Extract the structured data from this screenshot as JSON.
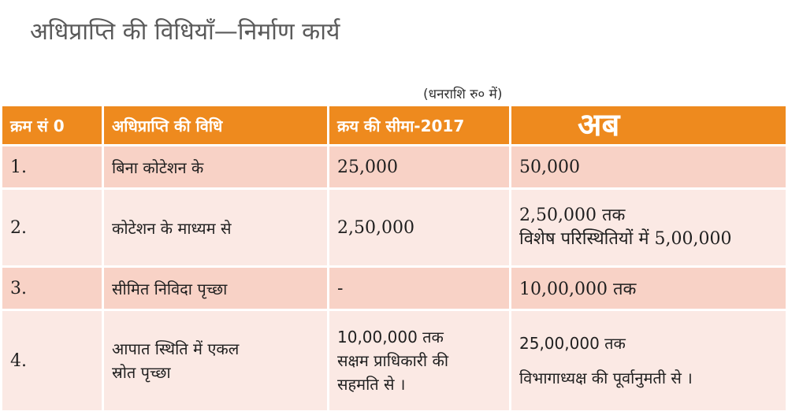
{
  "page": {
    "title": "अधिप्राप्ति की विधियाँ—निर्माण कार्य",
    "note": "(धनराशि रु० में)"
  },
  "table": {
    "headers": [
      "क्रम सं 0",
      "अधिप्राप्ति की विधि",
      "क्रय की सीमा-2017",
      "अब"
    ],
    "header_color": "#ee8a1e",
    "row_colors": [
      "#f8d2c6",
      "#fbe9e4"
    ],
    "rows": [
      {
        "sno": "1.",
        "method": "बिना कोटेशन के",
        "limit2017": "25,000",
        "now": "50,000"
      },
      {
        "sno": "2.",
        "method": "कोटेशन के माध्यम से",
        "limit2017": "2,50,000",
        "now_lines": [
          "2,50,000 तक",
          "विशेष परिस्थितियों में 5,00,000"
        ]
      },
      {
        "sno": "3.",
        "method": "सीमित निविदा पृच्छा",
        "limit2017": "-",
        "now": "10,00,000 तक"
      },
      {
        "sno": "4.",
        "method_lines": [
          "आपात स्थिति में एकल",
          "स्रोत पृच्छा"
        ],
        "limit2017_lines": [
          "10,00,000 तक",
          "सक्षम प्राधिकारी की",
          "सहमति से ।"
        ],
        "now_lines": [
          "25,00,000 तक",
          "विभागाध्यक्ष की पूर्वानुमती से ।"
        ]
      }
    ]
  }
}
